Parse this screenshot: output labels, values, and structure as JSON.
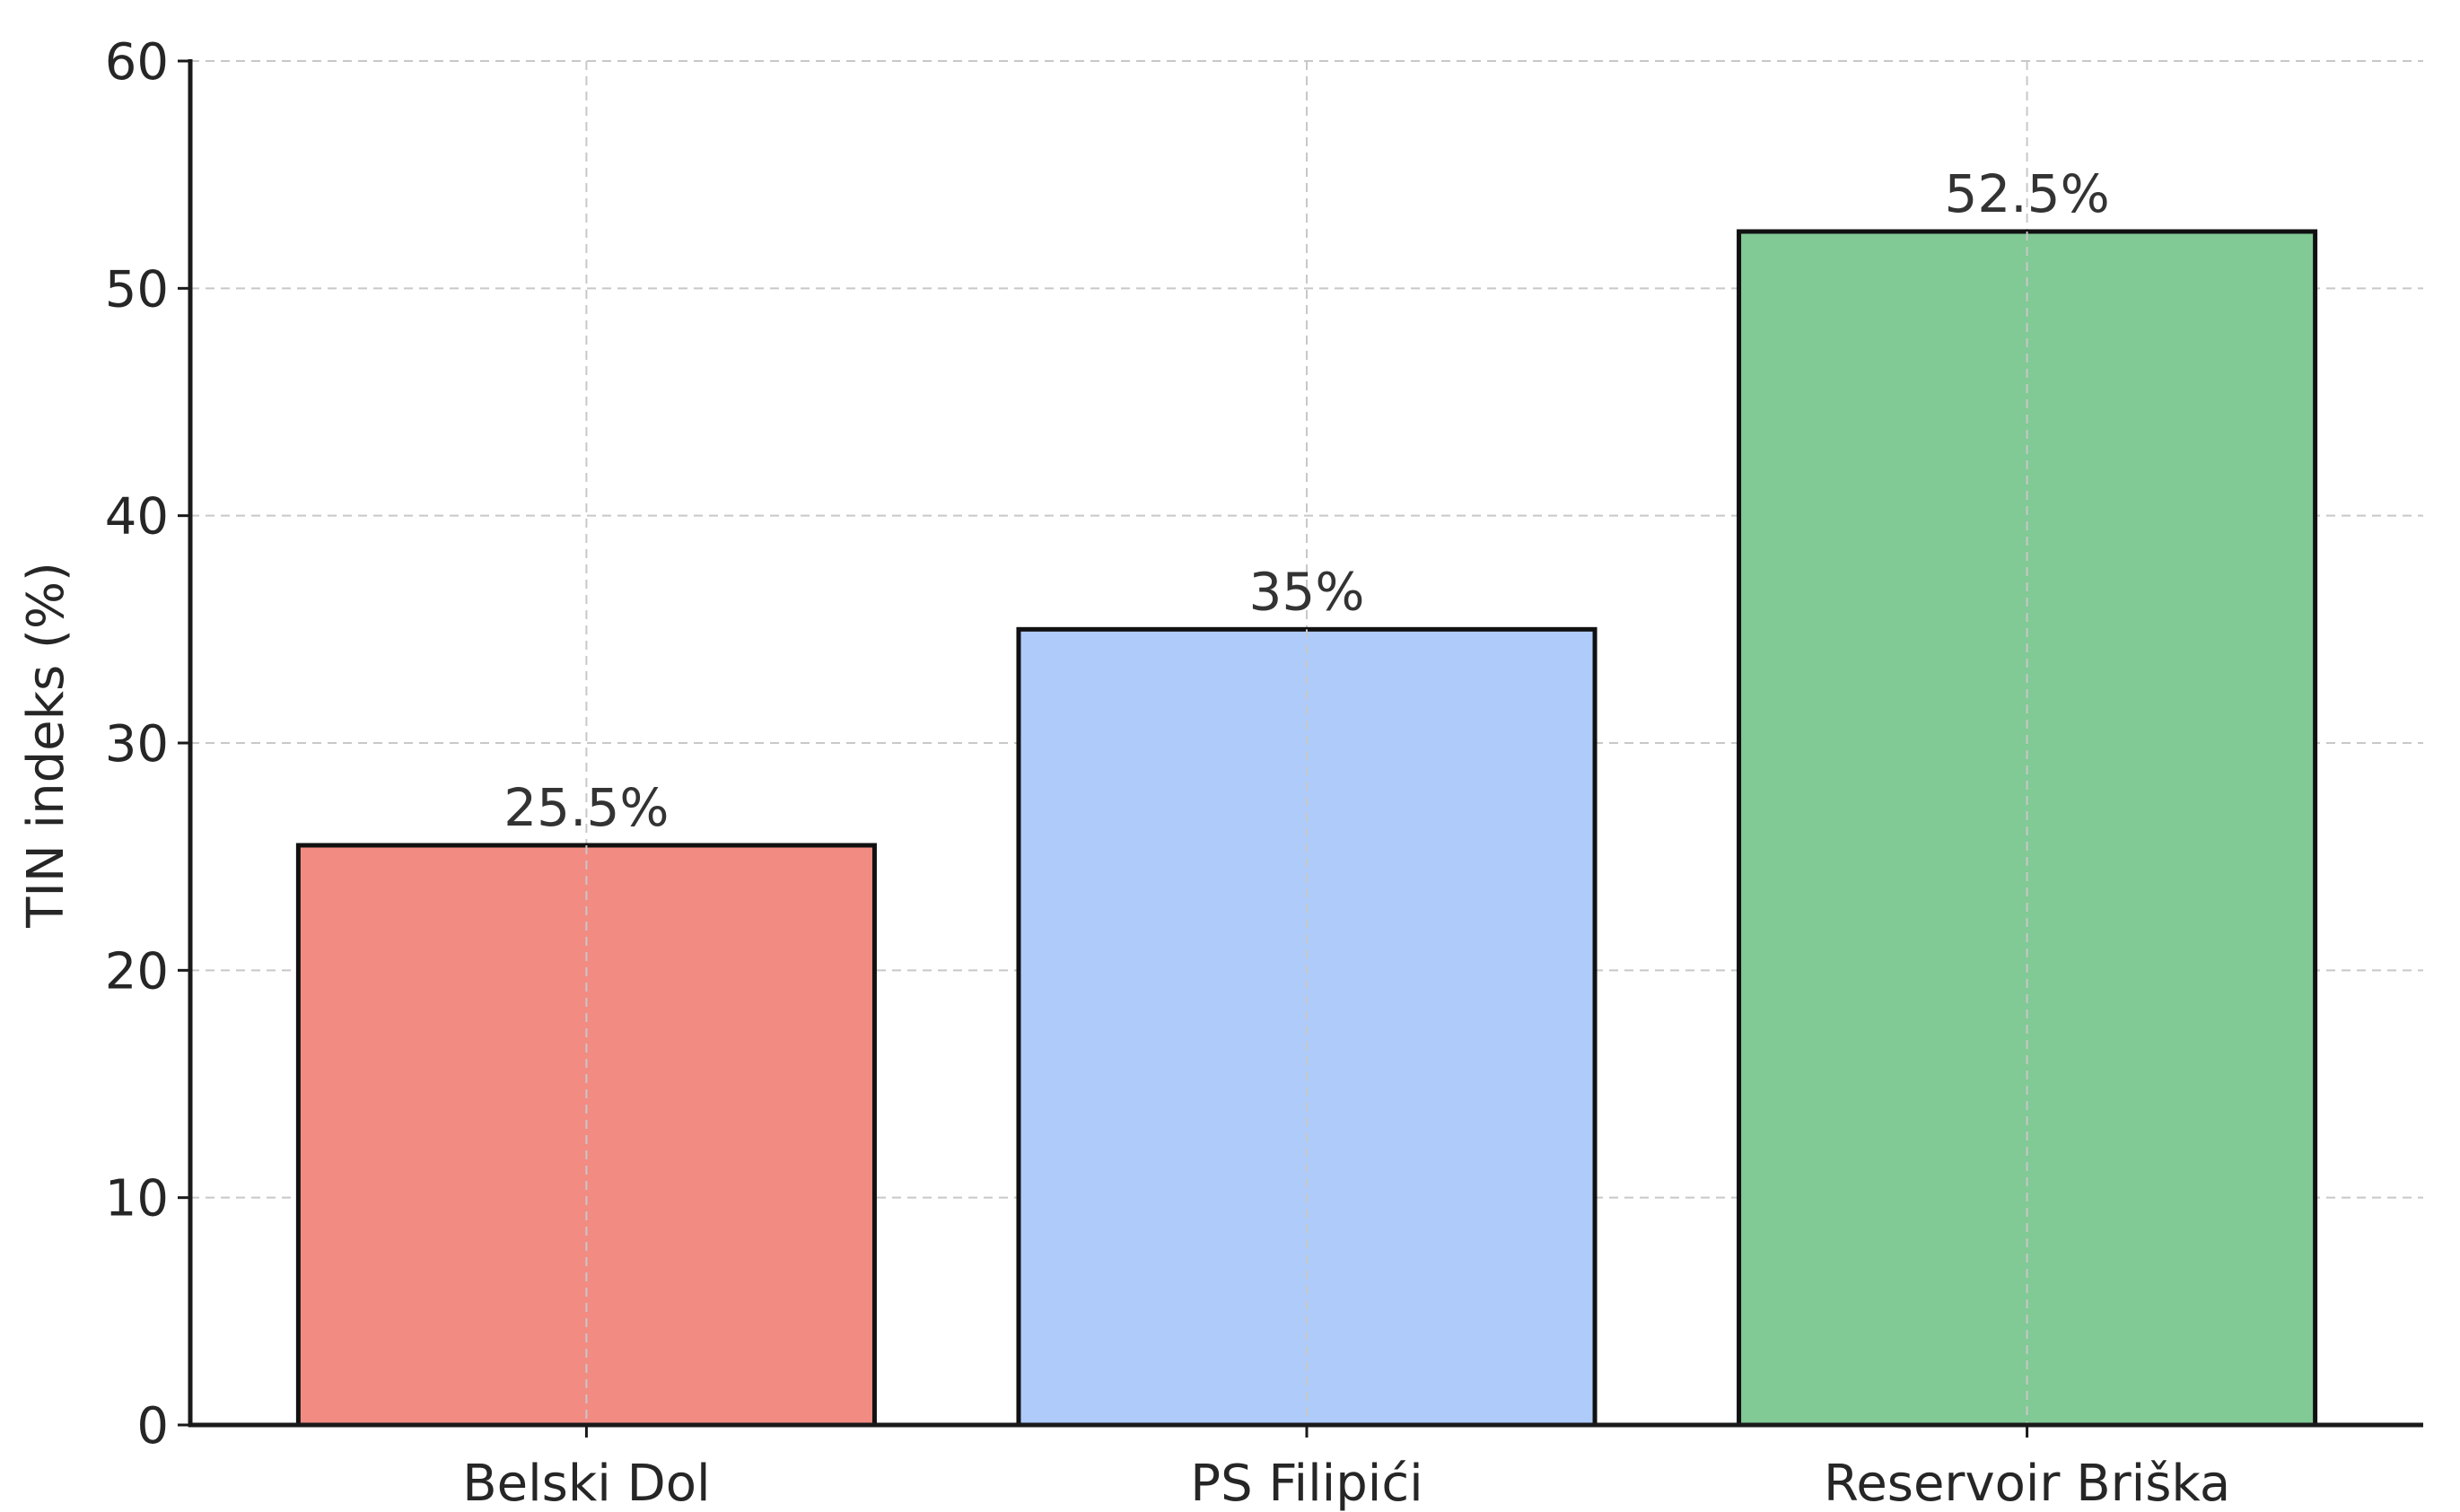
{
  "chart_data": {
    "type": "bar",
    "categories": [
      "Belski Dol",
      "PS Filipići",
      "Reservoir Briška"
    ],
    "values": [
      25.5,
      35,
      52.5
    ],
    "data_labels": [
      "25.5%",
      "35%",
      "52.5%"
    ],
    "colors": [
      "#f28b82",
      "#aecbfa",
      "#81c995"
    ],
    "title": "",
    "xlabel": "",
    "ylabel": "TIN indeks (%)",
    "ylim": [
      0,
      60
    ],
    "yticks": [
      "0",
      "10",
      "20",
      "30",
      "40",
      "50",
      "60"
    ],
    "grid": true,
    "legend": "none"
  }
}
